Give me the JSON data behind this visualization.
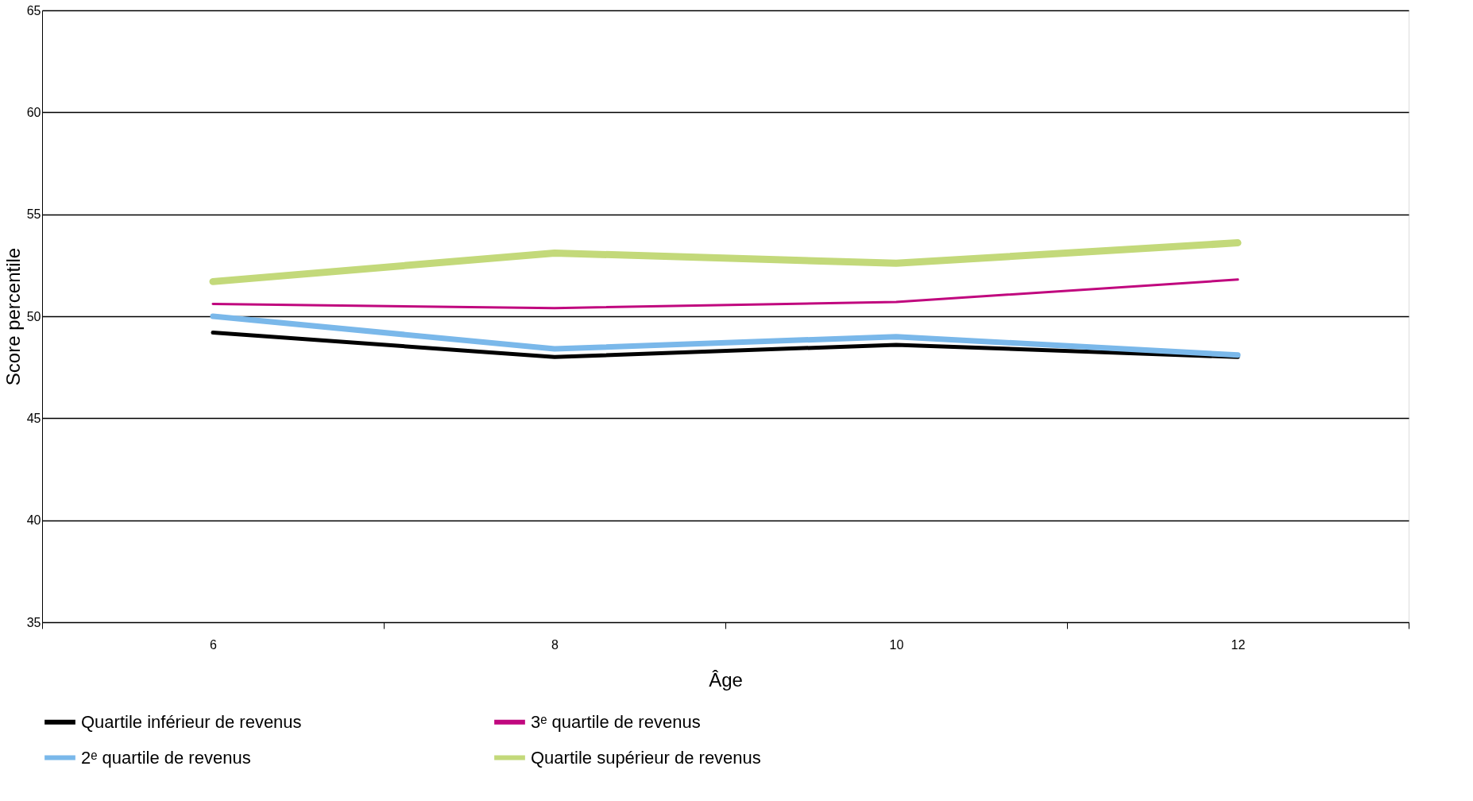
{
  "chart_data": {
    "type": "line",
    "xlabel": "Âge",
    "ylabel": "Score percentile",
    "categories": [
      "6",
      "8",
      "10",
      "12"
    ],
    "ylim": [
      35,
      65
    ],
    "yticks": [
      35,
      40,
      45,
      50,
      55,
      60,
      65
    ],
    "grid": "y",
    "legend": "bottom",
    "line_style": "solid",
    "marker": "none",
    "series": [
      {
        "name": "Quartile inférieur de revenus",
        "color": "#000000",
        "values": [
          49.2,
          48.0,
          48.6,
          48.0
        ]
      },
      {
        "name": "3ᵉ quartile de revenus",
        "color": "#c0077e",
        "values": [
          50.6,
          50.4,
          50.7,
          51.8
        ]
      },
      {
        "name": "2ᵉ quartile de revenus",
        "color": "#7ab8ea",
        "values": [
          50.0,
          48.4,
          49.0,
          48.1
        ]
      },
      {
        "name": "Quartile supérieur de revenus",
        "color": "#c3d97a",
        "values": [
          51.7,
          53.1,
          52.6,
          53.6
        ]
      }
    ]
  }
}
